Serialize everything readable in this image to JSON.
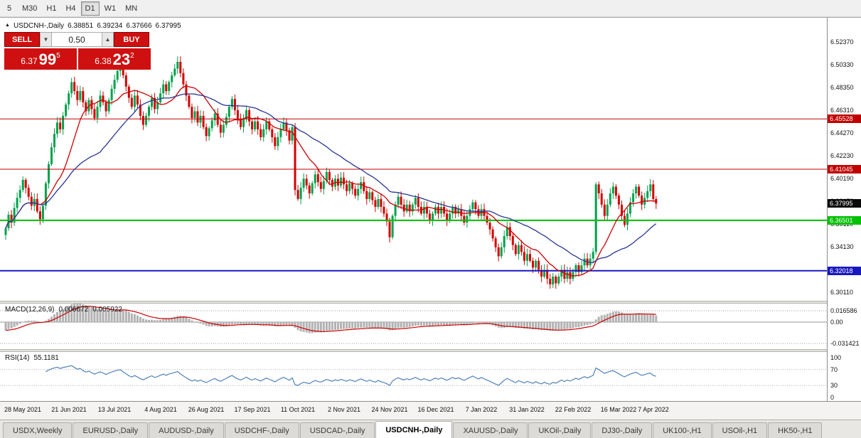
{
  "toolbar": {
    "timeframes": [
      "5",
      "M30",
      "H1",
      "H4",
      "D1",
      "W1",
      "MN"
    ],
    "active": "D1"
  },
  "chart": {
    "header": {
      "symbol": "USDCNH-,Daily",
      "open": "6.38851",
      "high": "6.39234",
      "low": "6.37666",
      "close": "6.37995"
    },
    "trade_panel": {
      "sell_label": "SELL",
      "buy_label": "BUY",
      "volume": "0.50",
      "sell_price": {
        "main": "6.37",
        "big": "99",
        "sup": "5"
      },
      "buy_price": {
        "main": "6.38",
        "big": "23",
        "sup": "2"
      }
    }
  },
  "chart_data": {
    "type": "candlestick",
    "symbol": "USDCNH-,Daily",
    "timeframe": "D1",
    "ylim": [
      6.293,
      6.544
    ],
    "y_ticks": [
      "6.52370",
      "6.50330",
      "6.48350",
      "6.46310",
      "6.44270",
      "6.42230",
      "6.40190",
      "6.38150",
      "6.36110",
      "6.34130",
      "6.32070",
      "6.30110"
    ],
    "first_open": 6.352,
    "closes": [
      6.358,
      6.37,
      6.363,
      6.376,
      6.385,
      6.392,
      6.401,
      6.394,
      6.386,
      6.378,
      6.384,
      6.373,
      6.366,
      6.378,
      6.398,
      6.415,
      6.43,
      6.442,
      6.452,
      6.446,
      6.458,
      6.468,
      6.478,
      6.488,
      6.48,
      6.472,
      6.48,
      6.47,
      6.462,
      6.472,
      6.464,
      6.456,
      6.466,
      6.476,
      6.47,
      6.462,
      6.472,
      6.482,
      6.49,
      6.498,
      6.504,
      6.494,
      6.484,
      6.474,
      6.466,
      6.476,
      6.468,
      6.458,
      6.45,
      6.458,
      6.466,
      6.474,
      6.464,
      6.47,
      6.478,
      6.486,
      6.48,
      6.488,
      6.494,
      6.5,
      6.506,
      6.496,
      6.486,
      6.476,
      6.466,
      6.456,
      6.462,
      6.452,
      6.458,
      6.448,
      6.44,
      6.447,
      6.454,
      6.46,
      6.45,
      6.443,
      6.45,
      6.457,
      6.466,
      6.473,
      6.463,
      6.455,
      6.448,
      6.455,
      6.463,
      6.453,
      6.446,
      6.453,
      6.446,
      6.439,
      6.446,
      6.453,
      6.446,
      6.439,
      6.431,
      6.439,
      6.446,
      6.452,
      6.445,
      6.436,
      6.448,
      6.392,
      6.384,
      6.394,
      6.402,
      6.396,
      6.389,
      6.398,
      6.406,
      6.399,
      6.393,
      6.4,
      6.408,
      6.401,
      6.395,
      6.402,
      6.396,
      6.403,
      6.397,
      6.391,
      6.398,
      6.393,
      6.387,
      6.393,
      6.399,
      6.391,
      6.384,
      6.39,
      6.383,
      6.377,
      6.384,
      6.377,
      6.371,
      6.364,
      6.35,
      6.369,
      6.379,
      6.386,
      6.379,
      6.373,
      6.379,
      6.373,
      6.379,
      6.385,
      6.377,
      6.371,
      6.377,
      6.371,
      6.365,
      6.371,
      6.377,
      6.371,
      6.377,
      6.371,
      6.365,
      6.371,
      6.377,
      6.371,
      6.375,
      6.369,
      6.363,
      6.369,
      6.375,
      6.381,
      6.375,
      6.369,
      6.375,
      6.369,
      6.363,
      6.357,
      6.349,
      6.341,
      6.333,
      6.341,
      6.351,
      6.359,
      6.351,
      6.343,
      6.335,
      6.343,
      6.337,
      6.329,
      6.335,
      6.329,
      6.323,
      6.329,
      6.321,
      6.315,
      6.321,
      6.313,
      6.308,
      6.315,
      6.309,
      6.315,
      6.321,
      6.313,
      6.319,
      6.313,
      6.319,
      6.325,
      6.319,
      6.325,
      6.331,
      6.325,
      6.331,
      6.337,
      6.397,
      6.389,
      6.379,
      6.369,
      6.379,
      6.389,
      6.395,
      6.387,
      6.379,
      6.369,
      6.361,
      6.371,
      6.381,
      6.389,
      6.395,
      6.387,
      6.379,
      6.385,
      6.391,
      6.397,
      6.384,
      6.38
    ],
    "x_labels": [
      {
        "text": "28 May 2021",
        "i": 6
      },
      {
        "text": "21 Jun 2021",
        "i": 22
      },
      {
        "text": "13 Jul 2021",
        "i": 38
      },
      {
        "text": "4 Aug 2021",
        "i": 54
      },
      {
        "text": "26 Aug 2021",
        "i": 70
      },
      {
        "text": "17 Sep 2021",
        "i": 86
      },
      {
        "text": "11 Oct 2021",
        "i": 102
      },
      {
        "text": "2 Nov 2021",
        "i": 118
      },
      {
        "text": "24 Nov 2021",
        "i": 134
      },
      {
        "text": "16 Dec 2021",
        "i": 150
      },
      {
        "text": "7 Jan 2022",
        "i": 166
      },
      {
        "text": "31 Jan 2022",
        "i": 182
      },
      {
        "text": "22 Feb 2022",
        "i": 198
      },
      {
        "text": "16 Mar 2022",
        "i": 214
      },
      {
        "text": "7 Apr 2022",
        "i": 226
      }
    ],
    "hlines": [
      {
        "price": 6.45528,
        "label": "6.45528",
        "color": "#c00000",
        "width": 1
      },
      {
        "price": 6.41045,
        "label": "6.41045",
        "color": "#c00000",
        "width": 1
      },
      {
        "price": 6.36501,
        "label": "6.36501",
        "color": "#00c000",
        "width": 2
      },
      {
        "price": 6.32018,
        "label": "6.32018",
        "color": "#1818c0",
        "width": 2
      }
    ],
    "current_price": {
      "value": 6.37995,
      "label": "6.37995",
      "color": "#0a0a0a"
    },
    "colors": {
      "candle_up": "#00a24c",
      "candle_down": "#d40000",
      "ma_fast": "#cc0000",
      "ma_slow": "#283593",
      "macd_hist": "#b2b2b2",
      "macd_signal": "#cc0000",
      "rsi_line": "#4f81bd"
    },
    "indicators": {
      "macd": {
        "label": "MACD(12,26,9)",
        "macd_value": "0.006672",
        "signal_value": "0.005922",
        "axis": [
          "0.016586",
          "0.00",
          "-0.031421"
        ],
        "axis_values": [
          0.016586,
          0,
          -0.031421
        ]
      },
      "rsi": {
        "label": "RSI(14)",
        "value": "55.1181",
        "axis": [
          "100",
          "70",
          "30",
          "0"
        ],
        "axis_values": [
          100,
          70,
          30,
          0
        ],
        "levels": [
          70,
          30
        ]
      }
    }
  },
  "tabs": {
    "items": [
      "USDX,Weekly",
      "EURUSD-,Daily",
      "AUDUSD-,Daily",
      "USDCHF-,Daily",
      "USDCAD-,Daily",
      "USDCNH-,Daily",
      "XAUUSD-,Daily",
      "UKOil-,Daily",
      "DJ30-,Daily",
      "UK100-,H1",
      "USOil-,H1",
      "HK50-,H1"
    ],
    "active": "USDCNH-,Daily"
  }
}
